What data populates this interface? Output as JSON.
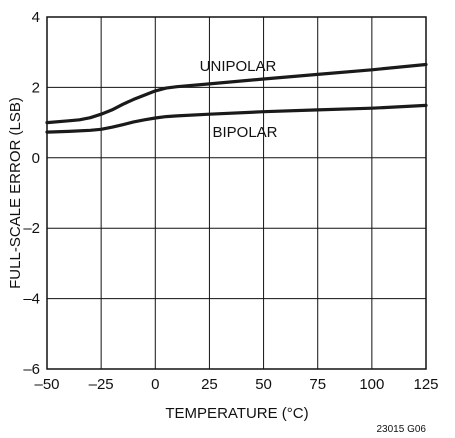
{
  "chart_data": {
    "type": "line",
    "xlabel": "TEMPERATURE (°C)",
    "ylabel": "FULL-SCALE ERROR (LSB)",
    "xlim": [
      -50,
      125
    ],
    "ylim": [
      -6,
      4
    ],
    "x_ticks": [
      -50,
      -25,
      0,
      25,
      50,
      75,
      100,
      125
    ],
    "y_ticks": [
      -6,
      -4,
      -2,
      0,
      2,
      4
    ],
    "x_tick_labels": [
      "–50",
      "–25",
      "0",
      "25",
      "50",
      "75",
      "100",
      "125"
    ],
    "y_tick_labels": [
      "–6",
      "–4",
      "–2",
      "0",
      "2",
      "4"
    ],
    "grid": true,
    "series": [
      {
        "name": "UNIPOLAR",
        "x": [
          -50,
          -40,
          -35,
          -30,
          -25,
          -20,
          -15,
          -10,
          -5,
          0,
          5,
          10,
          25,
          50,
          75,
          100,
          125
        ],
        "y": [
          1.0,
          1.05,
          1.08,
          1.14,
          1.24,
          1.36,
          1.52,
          1.66,
          1.78,
          1.9,
          1.98,
          2.02,
          2.1,
          2.24,
          2.37,
          2.5,
          2.65
        ]
      },
      {
        "name": "BIPOLAR",
        "x": [
          -50,
          -40,
          -30,
          -25,
          -20,
          -15,
          -10,
          -5,
          0,
          5,
          10,
          25,
          50,
          75,
          100,
          125
        ],
        "y": [
          0.73,
          0.75,
          0.78,
          0.81,
          0.87,
          0.94,
          1.02,
          1.08,
          1.13,
          1.17,
          1.19,
          1.24,
          1.31,
          1.36,
          1.41,
          1.49
        ]
      }
    ],
    "series_label_text": [
      "UNIPOLAR",
      "BIPOLAR"
    ],
    "figure_id": "23015 G06"
  }
}
